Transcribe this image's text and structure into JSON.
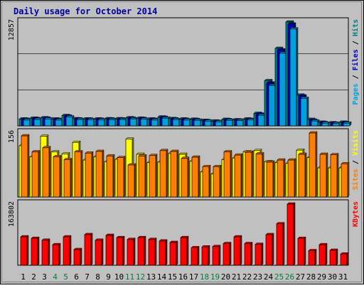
{
  "chart_data": {
    "type": "bar",
    "title": "Daily usage for October 2014",
    "categories": [
      "1",
      "2",
      "3",
      "4",
      "5",
      "6",
      "7",
      "8",
      "9",
      "10",
      "11",
      "12",
      "13",
      "14",
      "15",
      "16",
      "17",
      "18",
      "19",
      "20",
      "21",
      "22",
      "23",
      "24",
      "25",
      "26",
      "27",
      "28",
      "29",
      "30",
      "31"
    ],
    "weekend_days": [
      "4",
      "5",
      "11",
      "12",
      "18",
      "19",
      "25",
      "26"
    ],
    "panels": [
      {
        "id": "top",
        "ymax": 12857,
        "ymax_label": "12857",
        "legend": [
          {
            "text": "Pages",
            "color": "#00a0e0"
          },
          {
            "text": "Files",
            "color": "#0000c0"
          },
          {
            "text": "Hits",
            "color": "#008080"
          }
        ],
        "series": [
          {
            "name": "Hits",
            "color": "#008080",
            "values": [
              850,
              950,
              1000,
              850,
              1280,
              880,
              860,
              850,
              880,
              880,
              1000,
              950,
              850,
              1100,
              900,
              850,
              820,
              680,
              600,
              800,
              750,
              850,
              1550,
              5600,
              9600,
              12857,
              3800,
              800,
              450,
              380,
              450
            ]
          },
          {
            "name": "Files",
            "color": "#0000c0",
            "values": [
              820,
              900,
              950,
              800,
              1200,
              850,
              830,
              820,
              850,
              850,
              950,
              900,
              800,
              1050,
              850,
              800,
              780,
              650,
              550,
              760,
              720,
              800,
              1450,
              5300,
              9400,
              12600,
              3700,
              700,
              400,
              330,
              400
            ]
          },
          {
            "name": "Pages",
            "color": "#00a0e0",
            "values": [
              720,
              800,
              850,
              720,
              1100,
              780,
              750,
              730,
              780,
              780,
              860,
              820,
              720,
              950,
              770,
              720,
              700,
              580,
              500,
              680,
              650,
              730,
              1300,
              5000,
              9000,
              12000,
              3400,
              600,
              330,
              280,
              330
            ]
          }
        ]
      },
      {
        "id": "middle",
        "ymax": 156,
        "ymax_label": "156",
        "legend": [
          {
            "text": "Sites",
            "color": "#ff8000"
          },
          {
            "text": "Visits",
            "color": "#ffff00"
          }
        ],
        "series": [
          {
            "name": "Visits",
            "color": "#ffff00",
            "values": [
              125,
              98,
              148,
              110,
              105,
              133,
              90,
              98,
              86,
              92,
              141,
              104,
              84,
              85,
              106,
              104,
              87,
              61,
              56,
              91,
              95,
              110,
              113,
              86,
              84,
              82,
              114,
              96,
              71,
              71,
              71
            ]
          },
          {
            "name": "Sites",
            "color": "#ff8000",
            "values": [
              149,
              110,
              120,
              98,
              91,
              110,
              107,
              111,
              100,
              96,
              78,
              100,
              101,
              113,
              111,
              94,
              97,
              74,
              74,
              110,
              102,
              109,
              105,
              85,
              90,
              90,
              104,
              156,
              104,
              103,
              81
            ]
          }
        ]
      },
      {
        "id": "bottom",
        "ymax": 163802,
        "ymax_label": "163802",
        "legend": [
          {
            "text": "KBytes",
            "color": "#ff0000"
          }
        ],
        "series": [
          {
            "name": "KBytes",
            "color": "#ff0000",
            "values": [
              76000,
              72000,
              67000,
              55000,
              76000,
              42000,
              82000,
              67000,
              80000,
              74000,
              69000,
              74000,
              69000,
              65000,
              61000,
              74000,
              47000,
              49000,
              50000,
              58000,
              76000,
              58000,
              56000,
              82000,
              111000,
              163802,
              72000,
              39000,
              55000,
              40000,
              30000
            ]
          }
        ]
      }
    ]
  }
}
